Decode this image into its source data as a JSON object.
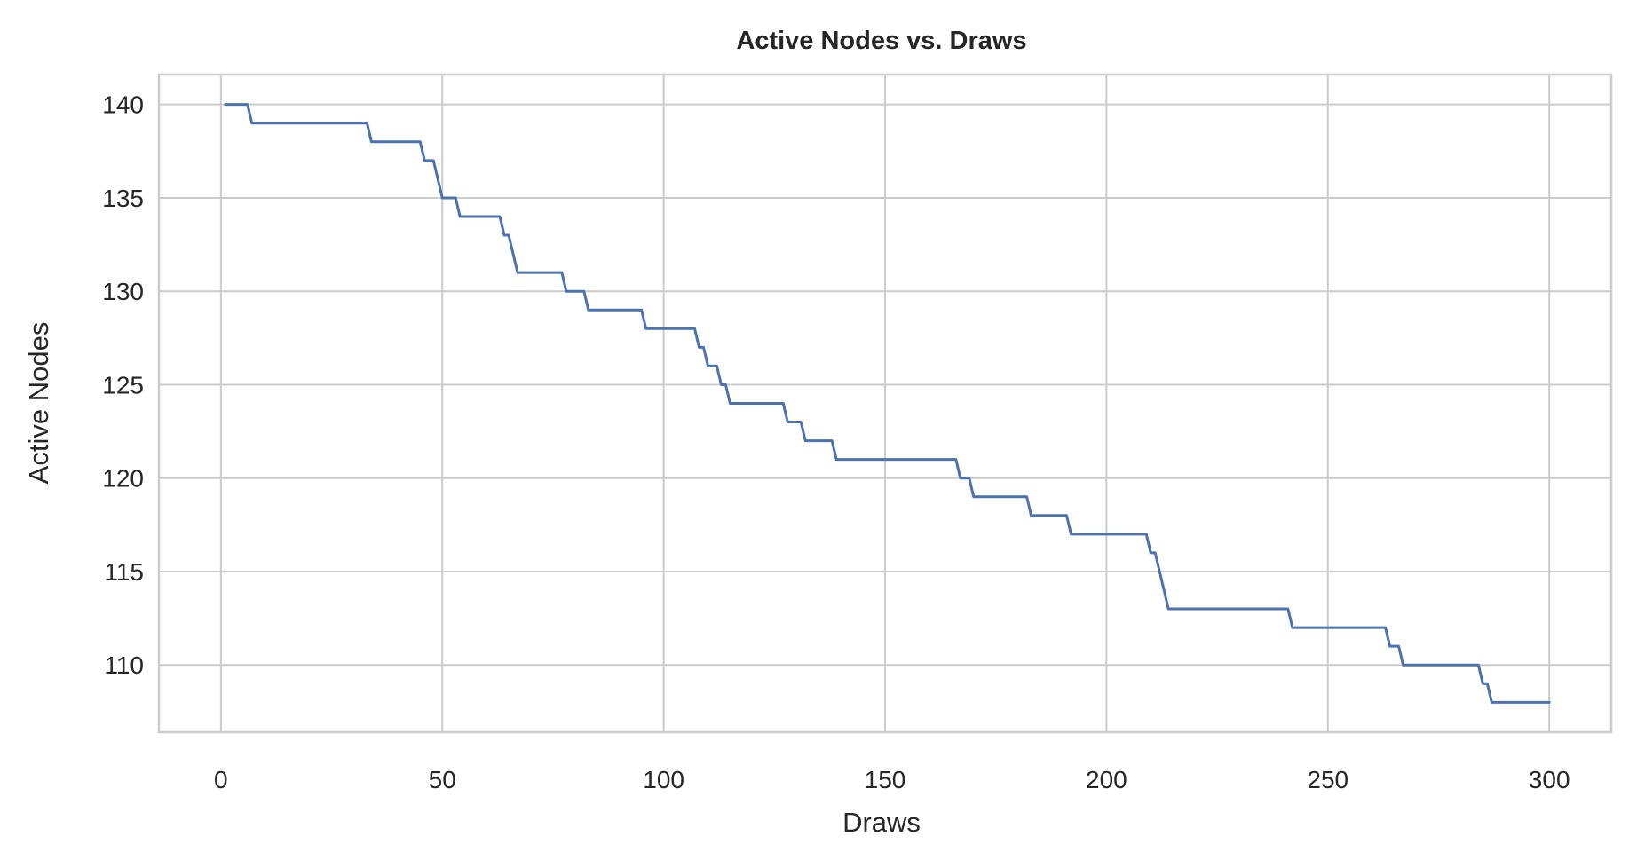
{
  "chart_data": {
    "type": "line",
    "title": "Active Nodes vs. Draws",
    "xlabel": "Draws",
    "ylabel": "Active Nodes",
    "xlim": [
      -14,
      314
    ],
    "ylim": [
      106.4,
      141.6
    ],
    "xticks": [
      0,
      50,
      100,
      150,
      200,
      250,
      300
    ],
    "yticks": [
      110,
      115,
      120,
      125,
      130,
      135,
      140
    ],
    "grid": true,
    "colors": {
      "line": "#4c72b0",
      "grid": "#cccccc",
      "frame": "#cccccc",
      "text": "#262626"
    },
    "series": [
      {
        "x": [
          1,
          6,
          7,
          33,
          34,
          45,
          46,
          48,
          50,
          51,
          53,
          54,
          63,
          64,
          65,
          67,
          77,
          78,
          82,
          83,
          95,
          96,
          107,
          108,
          109,
          110,
          112,
          113,
          114,
          115,
          116,
          127,
          128,
          131,
          132,
          138,
          139,
          166,
          167,
          169,
          170,
          182,
          183,
          191,
          192,
          209,
          210,
          211,
          214,
          241,
          242,
          263,
          264,
          266,
          267,
          284,
          285,
          286,
          287,
          300
        ],
        "y": [
          140,
          140,
          139,
          139,
          138,
          138,
          137,
          137,
          135,
          135,
          135,
          134,
          134,
          133,
          133,
          131,
          131,
          130,
          130,
          129,
          129,
          128,
          128,
          127,
          127,
          126,
          126,
          125,
          125,
          124,
          124,
          124,
          123,
          123,
          122,
          122,
          121,
          121,
          120,
          120,
          119,
          119,
          118,
          118,
          117,
          117,
          116,
          116,
          113,
          113,
          112,
          112,
          111,
          111,
          110,
          110,
          109,
          109,
          108,
          108
        ]
      }
    ]
  }
}
